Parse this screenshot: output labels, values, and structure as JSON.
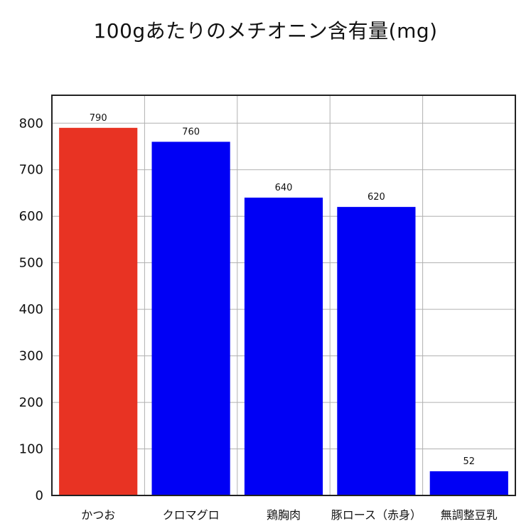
{
  "chart_data": {
    "type": "bar",
    "title": "100gあたりのメチオニン含有量(mg)",
    "xlabel": "",
    "ylabel": "",
    "categories": [
      "かつお",
      "クロマグロ",
      "鶏胸肉",
      "豚ロース（赤身）",
      "無調整豆乳"
    ],
    "values": [
      790,
      760,
      640,
      620,
      52
    ],
    "data_labels": [
      "790",
      "760",
      "640",
      "620",
      "52"
    ],
    "colors": [
      "#e83323",
      "#0000f5",
      "#0000f5",
      "#0000f5",
      "#0000f5"
    ],
    "ylim": [
      0,
      860
    ],
    "yticks": [
      0,
      100,
      200,
      300,
      400,
      500,
      600,
      700,
      800
    ],
    "ytick_labels": [
      "0",
      "100",
      "200",
      "300",
      "400",
      "500",
      "600",
      "700",
      "800"
    ],
    "grid": true,
    "legend": "none",
    "grid_color": "#b0b0b0",
    "frame_color": "#222222"
  }
}
